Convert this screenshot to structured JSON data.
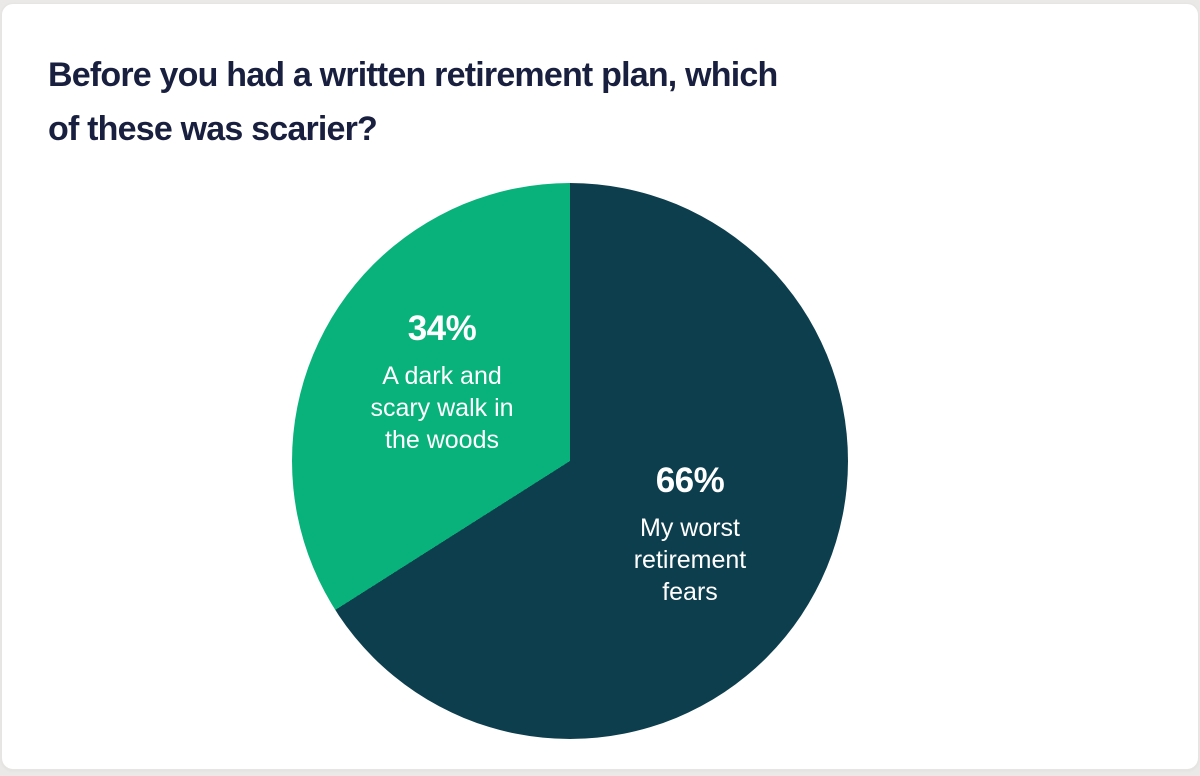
{
  "header": {
    "title_display": "Before you had a written retirement plan, which\nof these was scarier?"
  },
  "chart_data": {
    "type": "pie",
    "title": "Before you had a written retirement plan, which of these was scarier?",
    "direction": "clockwise",
    "start_angle_deg": 0,
    "legend_position": "none",
    "labels_on_slices": true,
    "label_text_color": "#ffffff",
    "slices": [
      {
        "label": "My worst retirement fears",
        "label_lines": "My worst\nretirement\nfears",
        "pct_label": "66%",
        "value": 66,
        "color": "#0d3e4d"
      },
      {
        "label": "A dark and scary walk in the woods",
        "label_lines": "A dark and\nscary walk in\nthe woods",
        "pct_label": "34%",
        "value": 34,
        "color": "#09b27a"
      }
    ],
    "colors": {
      "major_slice": "#0d3e4d",
      "minor_slice": "#09b27a",
      "title_text": "#191f3e",
      "card_bg": "#ffffff",
      "page_bg": "#ebe9e7"
    }
  }
}
